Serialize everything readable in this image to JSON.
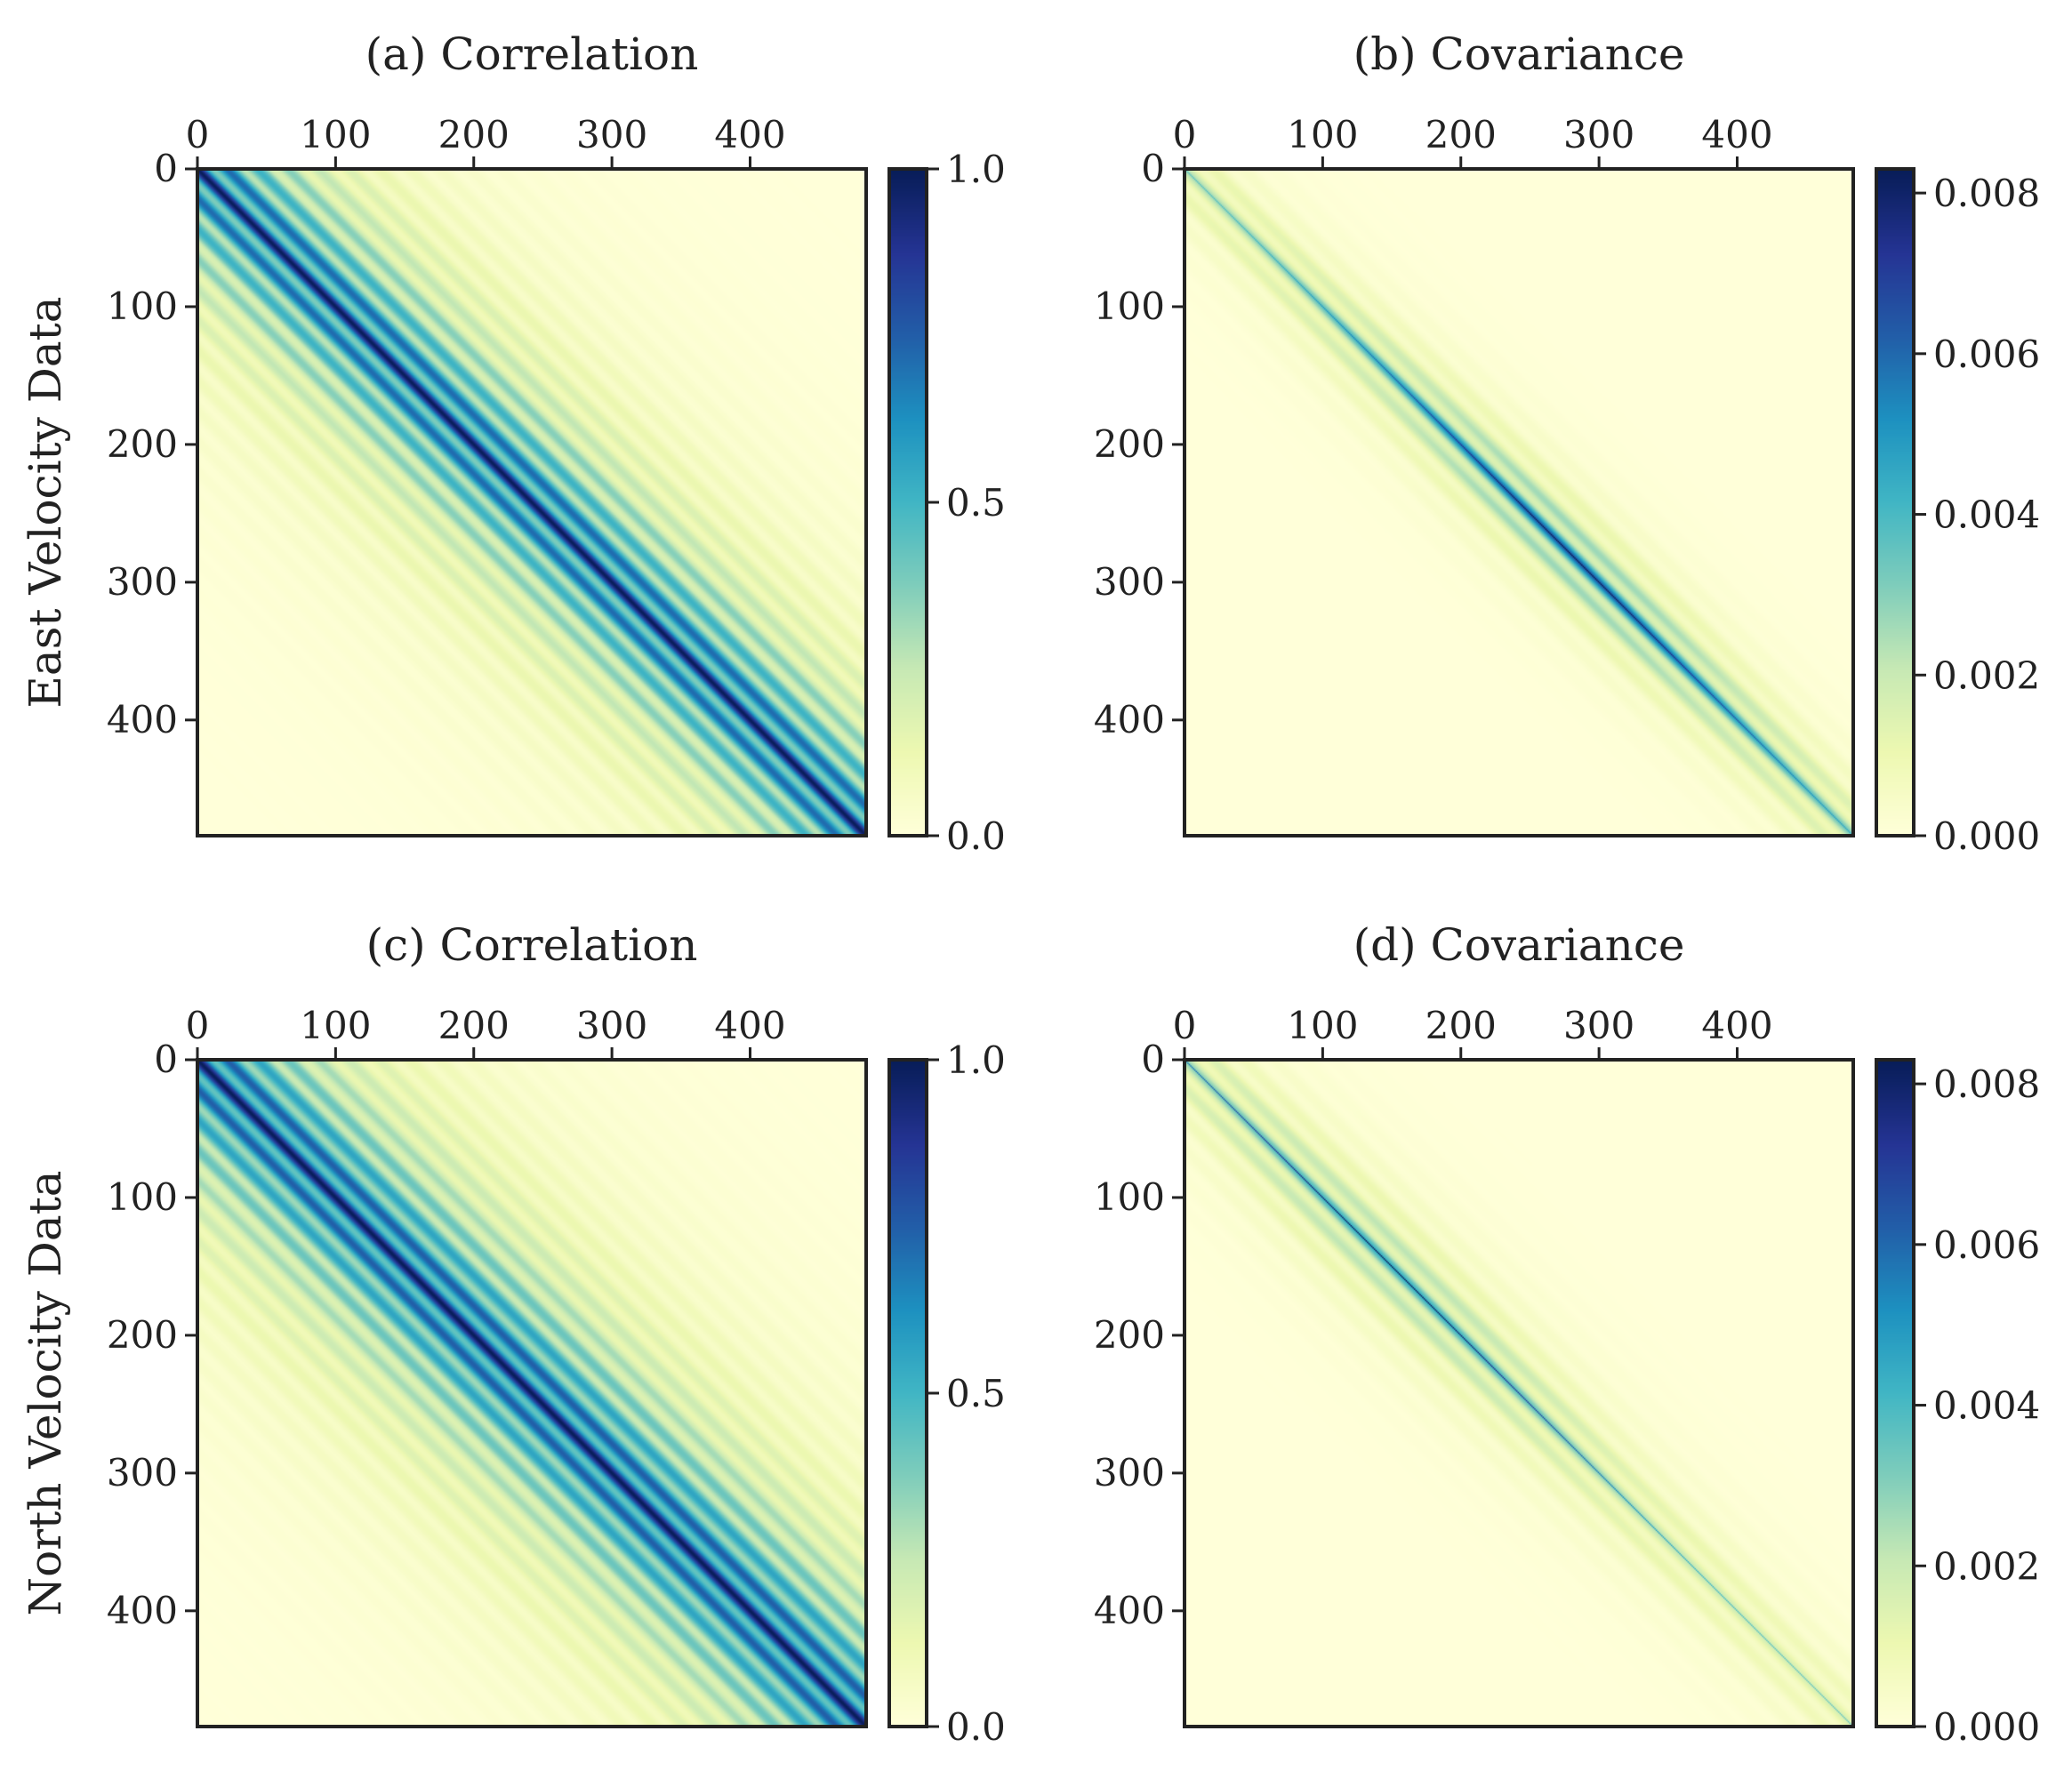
{
  "chart_data": [
    {
      "type": "heatmap",
      "panel": "a",
      "title": "(a) Correlation",
      "ylabel": "East Velocity Data",
      "matrix_size": 484,
      "xticks": [
        0,
        100,
        200,
        300,
        400
      ],
      "yticks": [
        0,
        100,
        200,
        300,
        400
      ],
      "x_axis_position": "top",
      "colormap": "YlGnBu",
      "colorbar": {
        "min": 0.0,
        "max": 1.0,
        "ticks": [
          "0.0",
          "0.5",
          "1.0"
        ],
        "tick_values": [
          0.0,
          0.5,
          1.0
        ]
      },
      "pattern": {
        "diagonal": 1.0,
        "block": 22,
        "decay": 65,
        "oscillation": 0.55
      }
    },
    {
      "type": "heatmap",
      "panel": "b",
      "title": "(b) Covariance",
      "ylabel": "",
      "matrix_size": 484,
      "xticks": [
        0,
        100,
        200,
        300,
        400
      ],
      "yticks": [
        0,
        100,
        200,
        300,
        400
      ],
      "x_axis_position": "top",
      "colormap": "YlGnBu",
      "colorbar": {
        "min": 0.0,
        "max": 0.0083,
        "ticks": [
          "0.000",
          "0.002",
          "0.004",
          "0.006",
          "0.008"
        ],
        "tick_values": [
          0.0,
          0.002,
          0.004,
          0.006,
          0.008
        ]
      },
      "pattern": {
        "diagonal": 0.0083,
        "block": 22,
        "decay": 8,
        "oscillation": 0.5,
        "peak_index": 280,
        "peak_value": 0.0065
      }
    },
    {
      "type": "heatmap",
      "panel": "c",
      "title": "(c) Correlation",
      "ylabel": "North Velocity Data",
      "matrix_size": 484,
      "xticks": [
        0,
        100,
        200,
        300,
        400
      ],
      "yticks": [
        0,
        100,
        200,
        300,
        400
      ],
      "x_axis_position": "top",
      "colormap": "YlGnBu",
      "colorbar": {
        "min": 0.0,
        "max": 1.0,
        "ticks": [
          "0.0",
          "0.5",
          "1.0"
        ],
        "tick_values": [
          0.0,
          0.5,
          1.0
        ]
      },
      "pattern": {
        "diagonal": 1.0,
        "block": 22,
        "decay": 75,
        "oscillation": 0.5
      }
    },
    {
      "type": "heatmap",
      "panel": "d",
      "title": "(d) Covariance",
      "ylabel": "",
      "matrix_size": 484,
      "xticks": [
        0,
        100,
        200,
        300,
        400
      ],
      "yticks": [
        0,
        100,
        200,
        300,
        400
      ],
      "x_axis_position": "top",
      "colormap": "YlGnBu",
      "colorbar": {
        "min": 0.0,
        "max": 0.0083,
        "ticks": [
          "0.000",
          "0.002",
          "0.004",
          "0.006",
          "0.008"
        ],
        "tick_values": [
          0.0,
          0.002,
          0.004,
          0.006,
          0.008
        ]
      },
      "pattern": {
        "diagonal": 0.0083,
        "block": 22,
        "decay": 10,
        "oscillation": 0.5,
        "peak_index": 150,
        "peak_value": 0.0045
      }
    }
  ]
}
